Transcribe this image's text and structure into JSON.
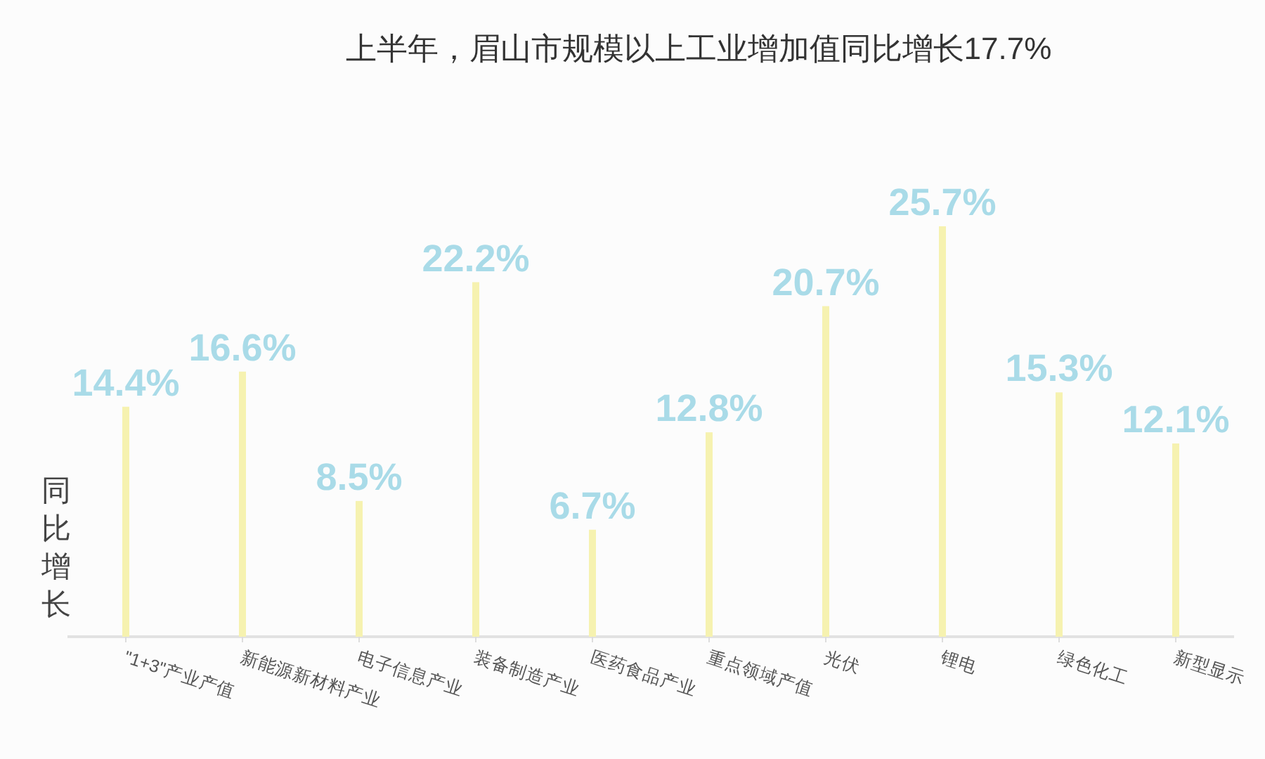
{
  "chart_data": {
    "type": "bar",
    "title": "上半年，眉山市规模以上工业增加值同比增长17.7%",
    "ylabel": "同比增长",
    "categories": [
      "\"1+3\"产业产值",
      "新能源新材料产业",
      "电子信息产业",
      "装备制造产业",
      "医药食品产业",
      "重点领域产值",
      "光伏",
      "锂电",
      "绿色化工",
      "新型显示"
    ],
    "series": [
      {
        "color": "#f6f2b0",
        "values": [
          14.4,
          16.6,
          8.5,
          22.2,
          6.7,
          12.8,
          20.7,
          25.7,
          15.3,
          12.1
        ],
        "value_labels": [
          "14.4%",
          "16.6%",
          "8.5%",
          "22.2%",
          "6.7%",
          "12.8%",
          "20.7%",
          "25.7%",
          "15.3%",
          "12.1%"
        ]
      }
    ],
    "tick_labels": "x"
  }
}
